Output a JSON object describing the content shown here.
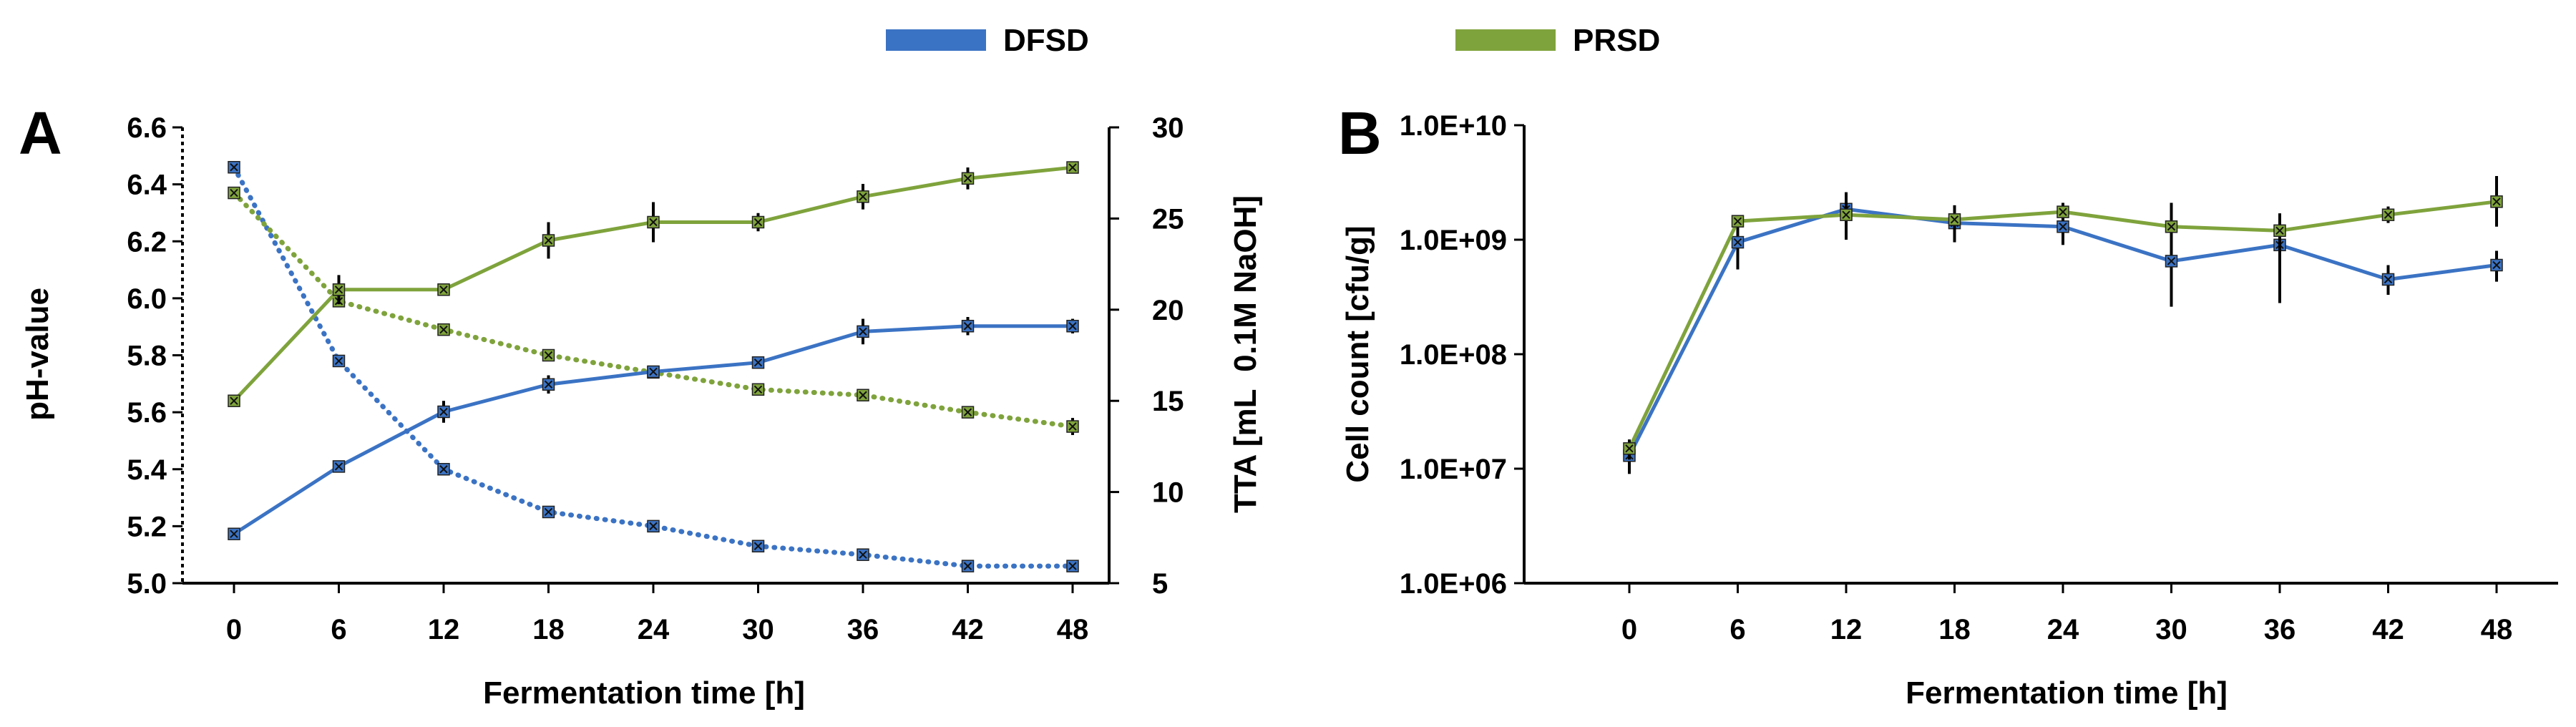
{
  "legend": [
    {
      "name": "DFSD",
      "color": "#3b73c4"
    },
    {
      "name": "PRSD",
      "color": "#7fa33c"
    }
  ],
  "chart_data": [
    {
      "panel": "A",
      "type": "line",
      "xlabel": "Fermentation time [h]",
      "ylabel": "pH-value",
      "y2label": "TTA [mL  0.1M NaOH]",
      "categories": [
        0,
        6,
        12,
        18,
        24,
        30,
        36,
        42,
        48
      ],
      "ylim": [
        5.0,
        6.6
      ],
      "yticks": [
        "5.0",
        "5.2",
        "5.4",
        "5.6",
        "5.8",
        "6.0",
        "6.2",
        "6.4",
        "6.6"
      ],
      "y2lim": [
        5,
        30
      ],
      "y2ticks": [
        "5",
        "10",
        "15",
        "20",
        "25",
        "30"
      ],
      "series": [
        {
          "name": "DFSD",
          "measure": "pH",
          "axis": "left",
          "style": "dotted",
          "color": "#3b73c4",
          "values": [
            6.46,
            5.78,
            5.4,
            5.25,
            5.2,
            5.13,
            5.1,
            5.06,
            5.06
          ],
          "err": [
            0.01,
            0.01,
            0.01,
            0.02,
            0.01,
            0.02,
            0.02,
            0.01,
            0.01
          ]
        },
        {
          "name": "PRSD",
          "measure": "pH",
          "axis": "left",
          "style": "dotted",
          "color": "#7fa33c",
          "values": [
            6.37,
            5.99,
            5.89,
            5.8,
            5.74,
            5.68,
            5.66,
            5.6,
            5.55
          ],
          "err": [
            0.01,
            0.02,
            0.01,
            0.01,
            0.02,
            0.01,
            0.02,
            0.01,
            0.03
          ]
        },
        {
          "name": "DFSD",
          "measure": "TTA",
          "axis": "right",
          "style": "solid",
          "color": "#3b73c4",
          "values": [
            7.7,
            11.4,
            14.4,
            15.9,
            16.6,
            17.1,
            18.8,
            19.1,
            19.1
          ],
          "err": [
            0.2,
            0.3,
            0.6,
            0.5,
            0.3,
            0.3,
            0.7,
            0.5,
            0.4
          ]
        },
        {
          "name": "PRSD",
          "measure": "TTA",
          "axis": "right",
          "style": "solid",
          "color": "#7fa33c",
          "values": [
            15.0,
            21.1,
            21.1,
            23.8,
            24.8,
            24.8,
            26.2,
            27.2,
            27.8
          ],
          "err": [
            0.2,
            0.8,
            0.2,
            1.0,
            1.1,
            0.5,
            0.7,
            0.6,
            0.3
          ]
        }
      ]
    },
    {
      "panel": "B",
      "type": "line",
      "yscale": "log",
      "xlabel": "Fermentation time [h]",
      "ylabel": "Cell count [cfu/g]",
      "categories": [
        0,
        6,
        12,
        18,
        24,
        30,
        36,
        42,
        48
      ],
      "ylim": [
        1000000.0,
        10000000000.0
      ],
      "yticks": [
        "1.0E+06",
        "1.0E+07",
        "1.0E+08",
        "1.0E+09",
        "1.0E+10"
      ],
      "series": [
        {
          "name": "DFSD",
          "color": "#3b73c4",
          "values": [
            13000000.0,
            950000000.0,
            1850000000.0,
            1400000000.0,
            1300000000.0,
            650000000.0,
            900000000.0,
            450000000.0,
            600000000.0
          ],
          "err_low": [
            9000000.0,
            550000000.0,
            1200000000.0,
            950000000.0,
            900000000.0,
            260000000.0,
            280000000.0,
            330000000.0,
            430000000.0
          ],
          "err_high": [
            17000000.0,
            1300000000.0,
            2600000000.0,
            1900000000.0,
            1800000000.0,
            1050000000.0,
            1500000000.0,
            600000000.0,
            800000000.0
          ]
        },
        {
          "name": "PRSD",
          "color": "#7fa33c",
          "values": [
            15000000.0,
            1450000000.0,
            1650000000.0,
            1500000000.0,
            1750000000.0,
            1300000000.0,
            1200000000.0,
            1650000000.0,
            2150000000.0
          ],
          "err_low": [
            12000000.0,
            1300000000.0,
            1000000000.0,
            1150000000.0,
            1450000000.0,
            900000000.0,
            800000000.0,
            1400000000.0,
            1300000000.0
          ],
          "err_high": [
            18000000.0,
            1600000000.0,
            2300000000.0,
            2000000000.0,
            2100000000.0,
            2100000000.0,
            1700000000.0,
            1950000000.0,
            3600000000.0
          ]
        }
      ]
    }
  ]
}
